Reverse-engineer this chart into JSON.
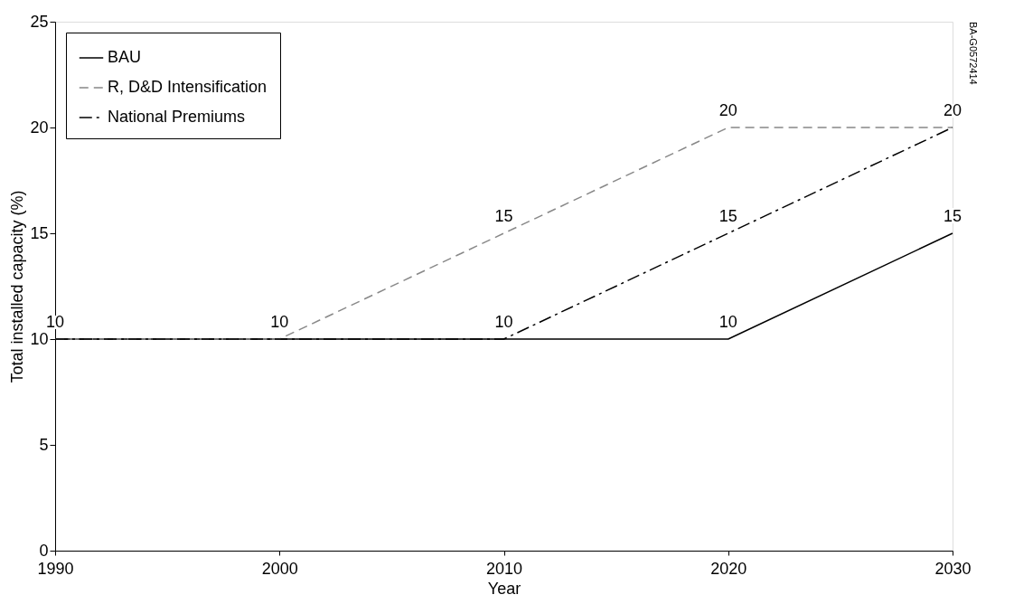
{
  "chart_data": {
    "type": "line",
    "xlabel": "Year",
    "ylabel": "Total installed capacity (%)",
    "x": [
      1990,
      2000,
      2010,
      2020,
      2030
    ],
    "xlim": [
      1990,
      2030
    ],
    "xticks": [
      1990,
      2000,
      2010,
      2020,
      2030
    ],
    "ylim": [
      0,
      25
    ],
    "yticks": [
      0,
      5,
      10,
      15,
      20,
      25
    ],
    "grid": false,
    "legend": "top left",
    "series": [
      {
        "name": "BAU",
        "color": "#000000",
        "line_style": "solid",
        "values": [
          10,
          10,
          10,
          10,
          15
        ],
        "value_labels": [
          null,
          null,
          "10",
          "10",
          "15"
        ]
      },
      {
        "name": "R, D&D Intensification",
        "color": "#888888",
        "line_style": "dashed",
        "values": [
          10,
          10,
          15,
          20,
          20
        ],
        "value_labels": [
          "10",
          "10",
          "15",
          "20",
          "20"
        ]
      },
      {
        "name": "National Premiums",
        "color": "#000000",
        "line_style": "dashdot",
        "values": [
          10,
          10,
          10,
          15,
          20
        ],
        "value_labels": [
          null,
          null,
          null,
          "15",
          null
        ]
      }
    ],
    "annotations": [
      "BA-G0572414"
    ]
  }
}
